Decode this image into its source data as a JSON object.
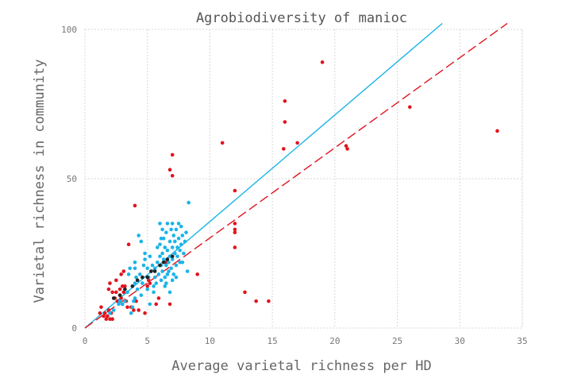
{
  "chart_data": {
    "type": "scatter",
    "title": "Agrobiodiversity of manioc",
    "xlabel": "Average varietal richness per HD",
    "ylabel": "Varietal richness in community",
    "xlim": [
      0,
      35
    ],
    "ylim": [
      0,
      100
    ],
    "xticks": [
      0,
      5,
      10,
      15,
      20,
      25,
      30,
      35
    ],
    "yticks": [
      0,
      50,
      100
    ],
    "grid": true,
    "colors": {
      "red": "#e0141e",
      "blue": "#1ab4e8",
      "black": "#222222"
    },
    "series": [
      {
        "color": "#e0141e",
        "points": [
          [
            1.2,
            5
          ],
          [
            1.3,
            7
          ],
          [
            1.5,
            4
          ],
          [
            1.6,
            5
          ],
          [
            1.7,
            3
          ],
          [
            1.8,
            4
          ],
          [
            1.9,
            6
          ],
          [
            2.0,
            3
          ],
          [
            1.9,
            13
          ],
          [
            2.0,
            15
          ],
          [
            2.2,
            12
          ],
          [
            2.1,
            5
          ],
          [
            2.2,
            3
          ],
          [
            2.4,
            10
          ],
          [
            2.5,
            12
          ],
          [
            2.6,
            9
          ],
          [
            2.5,
            16
          ],
          [
            2.8,
            11
          ],
          [
            2.8,
            13
          ],
          [
            2.9,
            18
          ],
          [
            2.9,
            10
          ],
          [
            3.0,
            14
          ],
          [
            3.0,
            8
          ],
          [
            3.1,
            19
          ],
          [
            3.1,
            12
          ],
          [
            3.2,
            14
          ],
          [
            3.3,
            9
          ],
          [
            3.4,
            7
          ],
          [
            3.5,
            28
          ],
          [
            3.7,
            7
          ],
          [
            3.9,
            6
          ],
          [
            4.0,
            41
          ],
          [
            4.1,
            9
          ],
          [
            4.3,
            6
          ],
          [
            4.8,
            5
          ],
          [
            5.0,
            14
          ],
          [
            5.1,
            16
          ],
          [
            5.2,
            15
          ],
          [
            5.7,
            8
          ],
          [
            5.9,
            10
          ],
          [
            6.5,
            22
          ],
          [
            6.8,
            8
          ],
          [
            6.8,
            53
          ],
          [
            7.0,
            51
          ],
          [
            7.0,
            58
          ],
          [
            9.0,
            18
          ],
          [
            11.0,
            62
          ],
          [
            12.0,
            27
          ],
          [
            12.0,
            32
          ],
          [
            12.0,
            33
          ],
          [
            12.0,
            35
          ],
          [
            12.0,
            46
          ],
          [
            12.8,
            12
          ],
          [
            13.7,
            9
          ],
          [
            14.7,
            9
          ],
          [
            15.9,
            60
          ],
          [
            16.0,
            69
          ],
          [
            16.0,
            76
          ],
          [
            17.0,
            62
          ],
          [
            19.0,
            89
          ],
          [
            20.9,
            61
          ],
          [
            21.0,
            60
          ],
          [
            26.0,
            74
          ],
          [
            33.0,
            66
          ]
        ]
      },
      {
        "color": "#1ab4e8",
        "points": [
          [
            2.0,
            5
          ],
          [
            2.3,
            6
          ],
          [
            2.7,
            8
          ],
          [
            2.8,
            9
          ],
          [
            3.0,
            8
          ],
          [
            3.2,
            9
          ],
          [
            3.4,
            12
          ],
          [
            3.5,
            18
          ],
          [
            3.6,
            20
          ],
          [
            3.7,
            5
          ],
          [
            3.8,
            7
          ],
          [
            3.9,
            9
          ],
          [
            4.0,
            10
          ],
          [
            4.0,
            15
          ],
          [
            4.0,
            20
          ],
          [
            4.0,
            22
          ],
          [
            4.1,
            17
          ],
          [
            4.2,
            13
          ],
          [
            4.3,
            31
          ],
          [
            4.4,
            18
          ],
          [
            4.5,
            29
          ],
          [
            4.5,
            11
          ],
          [
            4.6,
            15
          ],
          [
            4.7,
            21
          ],
          [
            4.8,
            23
          ],
          [
            4.8,
            25
          ],
          [
            5.0,
            13
          ],
          [
            5.0,
            20
          ],
          [
            5.1,
            17
          ],
          [
            5.2,
            24
          ],
          [
            5.2,
            8
          ],
          [
            5.3,
            19
          ],
          [
            5.4,
            21
          ],
          [
            5.5,
            14
          ],
          [
            5.5,
            12
          ],
          [
            5.6,
            17
          ],
          [
            5.6,
            20
          ],
          [
            5.7,
            15
          ],
          [
            5.8,
            22
          ],
          [
            5.9,
            18
          ],
          [
            6.0,
            35
          ],
          [
            6.0,
            24
          ],
          [
            6.0,
            28
          ],
          [
            6.1,
            16
          ],
          [
            6.1,
            21
          ],
          [
            6.2,
            25
          ],
          [
            6.2,
            19
          ],
          [
            6.3,
            30
          ],
          [
            6.3,
            23
          ],
          [
            6.4,
            27
          ],
          [
            6.4,
            17
          ],
          [
            6.5,
            32
          ],
          [
            6.5,
            21
          ],
          [
            6.5,
            15
          ],
          [
            6.6,
            26
          ],
          [
            6.6,
            35
          ],
          [
            6.7,
            22
          ],
          [
            6.7,
            19
          ],
          [
            6.8,
            29
          ],
          [
            6.8,
            24
          ],
          [
            6.9,
            33
          ],
          [
            6.9,
            20
          ],
          [
            7.0,
            27
          ],
          [
            7.0,
            35
          ],
          [
            7.0,
            23
          ],
          [
            7.1,
            31
          ],
          [
            7.1,
            18
          ],
          [
            7.2,
            25
          ],
          [
            7.2,
            29
          ],
          [
            7.3,
            21
          ],
          [
            7.3,
            33
          ],
          [
            7.4,
            27
          ],
          [
            7.4,
            24
          ],
          [
            7.5,
            35
          ],
          [
            7.5,
            30
          ],
          [
            7.6,
            22
          ],
          [
            7.6,
            26
          ],
          [
            7.7,
            34
          ],
          [
            7.7,
            28
          ],
          [
            7.8,
            31
          ],
          [
            7.9,
            25
          ],
          [
            8.0,
            29
          ],
          [
            8.1,
            32
          ],
          [
            8.2,
            19
          ],
          [
            8.3,
            42
          ],
          [
            6.2,
            33
          ],
          [
            6.4,
            14
          ],
          [
            6.6,
            18
          ],
          [
            7.0,
            16
          ],
          [
            6.8,
            12
          ],
          [
            5.8,
            27
          ],
          [
            6.1,
            30
          ],
          [
            7.3,
            17
          ],
          [
            7.8,
            22
          ]
        ]
      },
      {
        "color": "#222222",
        "points": [
          [
            2.3,
            10
          ],
          [
            2.8,
            11
          ],
          [
            3.2,
            13
          ],
          [
            3.8,
            14
          ],
          [
            4.2,
            16
          ],
          [
            4.6,
            17
          ],
          [
            5.0,
            17
          ],
          [
            5.3,
            19
          ],
          [
            5.6,
            19
          ],
          [
            6.0,
            21
          ],
          [
            6.3,
            22
          ],
          [
            6.6,
            23
          ],
          [
            7.0,
            24
          ]
        ]
      }
    ],
    "lines": [
      {
        "color": "#1ab4e8",
        "style": "solid",
        "from": [
          0,
          0
        ],
        "to": [
          28.6,
          102
        ]
      },
      {
        "color": "#e0141e",
        "style": "dashed",
        "from": [
          0,
          0
        ],
        "to": [
          33.8,
          102
        ]
      }
    ]
  }
}
